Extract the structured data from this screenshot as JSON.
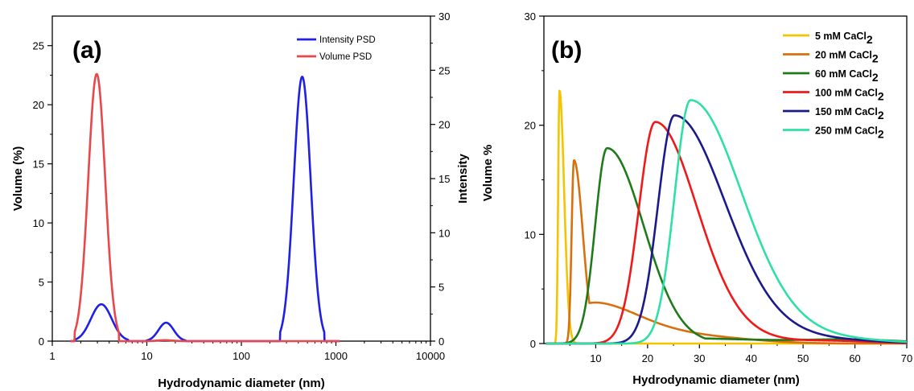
{
  "chart_data": [
    {
      "type": "line",
      "panel_label": "(a)",
      "xlabel": "Hydrodynamic diameter (nm)",
      "ylabel": "Volume (%)",
      "y2label": "Intensity",
      "xscale": "log",
      "xlim": [
        1,
        10000
      ],
      "ylim": [
        0,
        27.5
      ],
      "y2lim": [
        0,
        30
      ],
      "xticks": [
        "1",
        "10",
        "100",
        "1000",
        "10000"
      ],
      "yticks": [
        "0",
        "5",
        "10",
        "15",
        "20",
        "25"
      ],
      "y2ticks": [
        "0",
        "5",
        "10",
        "15",
        "20",
        "25",
        "30"
      ],
      "legend_position": "top-right",
      "grid": false,
      "series": [
        {
          "name": "Intensity PSD",
          "axis": "right",
          "color": "#1f1fe6",
          "peaks": [
            {
              "center": 3.3,
              "height": 3.4,
              "width": 0.11
            },
            {
              "center": 16,
              "height": 1.7,
              "width": 0.08
            },
            {
              "center": 440,
              "height": 24.4,
              "width": 0.09
            }
          ]
        },
        {
          "name": "Volume PSD",
          "axis": "left",
          "color": "#e8474b",
          "peaks": [
            {
              "center": 2.95,
              "height": 22.6,
              "width": 0.09
            },
            {
              "center": 15.5,
              "height": 0.08,
              "width": 0.08
            }
          ]
        }
      ]
    },
    {
      "type": "line",
      "panel_label": "(b)",
      "xlabel": "Hydrodynamic diameter (nm)",
      "ylabel": "Volume %",
      "xlim": [
        0,
        70
      ],
      "ylim": [
        0,
        30
      ],
      "xticks": [
        "10",
        "20",
        "30",
        "40",
        "50",
        "60",
        "70"
      ],
      "yticks": [
        "0",
        "10",
        "20",
        "30"
      ],
      "legend_position": "top-right",
      "grid": false,
      "series": [
        {
          "name": "5 mM CaCl",
          "subscript": "2",
          "color": "#f5c400",
          "peak_x": 3,
          "peak_y": 23.2
        },
        {
          "name": "20 mM CaCl",
          "subscript": "2",
          "color": "#d9700f",
          "peak_x": 5.8,
          "peak_y": 16.8
        },
        {
          "name": "60 mM CaCl",
          "subscript": "2",
          "color": "#1f7a1a",
          "peak_x": 12.2,
          "peak_y": 17.9
        },
        {
          "name": "100 mM CaCl",
          "subscript": "2",
          "color": "#f01818",
          "peak_x": 21.5,
          "peak_y": 20.3
        },
        {
          "name": "150 mM CaCl",
          "subscript": "2",
          "color": "#1a1a8c",
          "peak_x": 25.2,
          "peak_y": 20.9
        },
        {
          "name": "250 mM CaCl",
          "subscript": "2",
          "color": "#2ee0a5",
          "peak_x": 28.3,
          "peak_y": 22.3
        }
      ]
    }
  ]
}
